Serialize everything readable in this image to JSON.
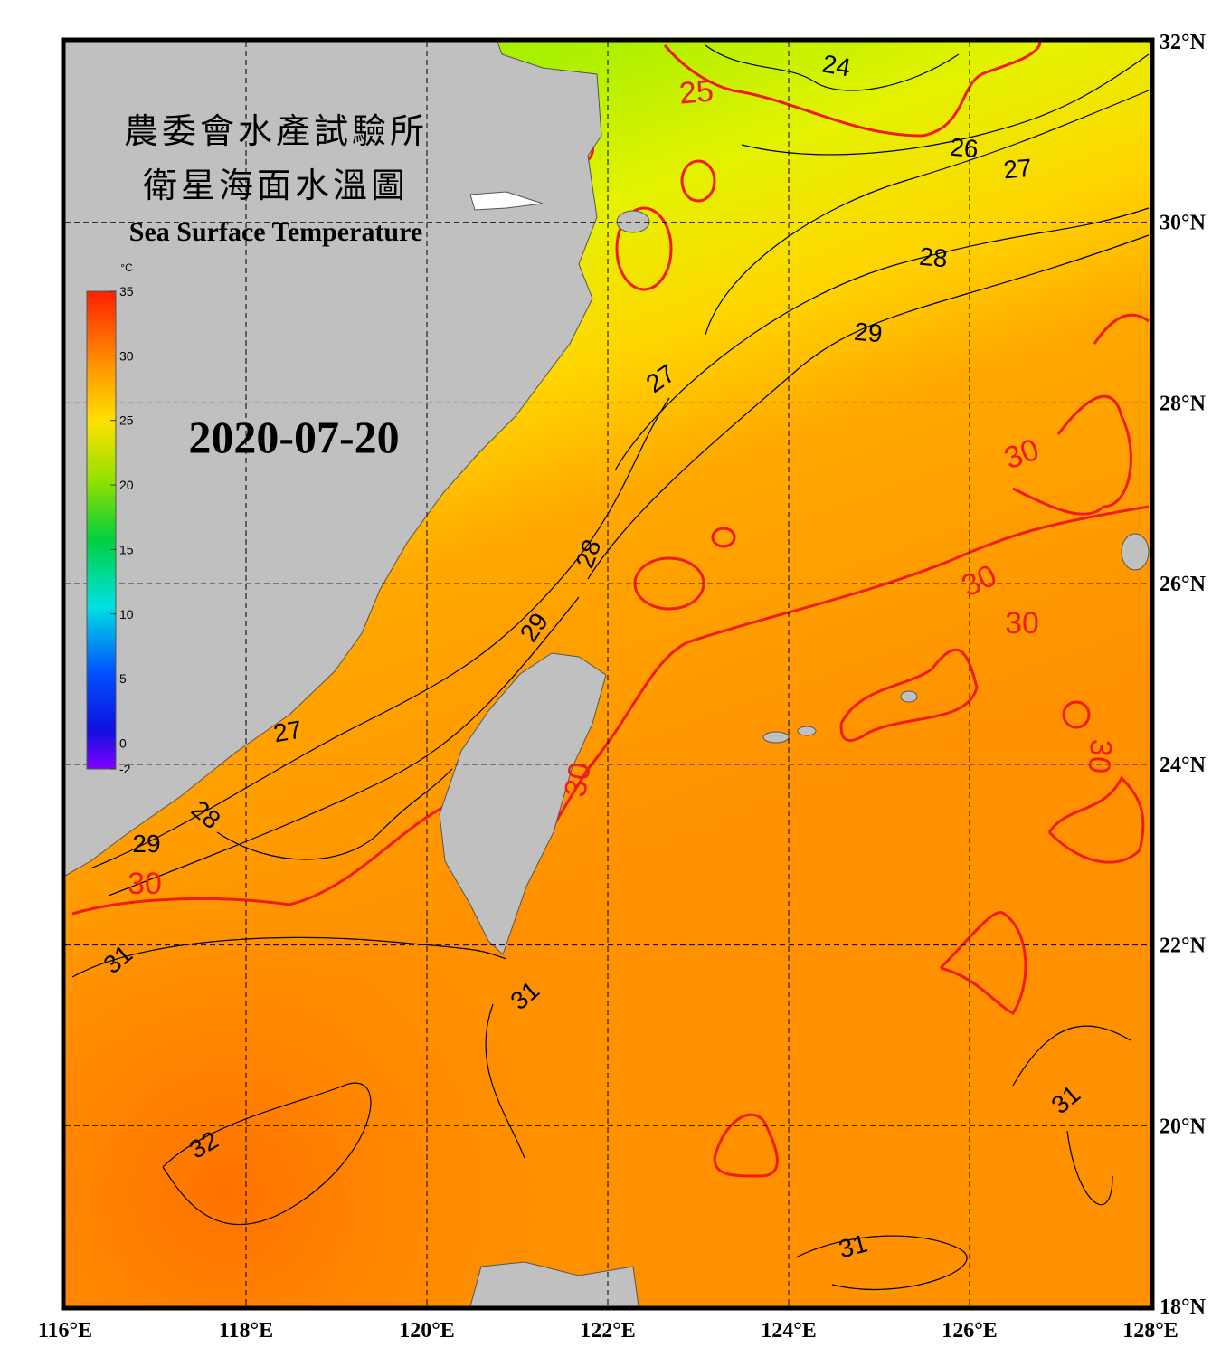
{
  "title_zh": [
    "農委會水產試驗所",
    "衛星海面水溫圖"
  ],
  "title_en": "Sea Surface Temperature",
  "date": "2020-07-20",
  "colorbar": {
    "unit": "°C",
    "ticks": [
      35,
      30,
      25,
      20,
      15,
      10,
      5,
      0,
      -2
    ],
    "lim": [
      -2,
      35
    ]
  },
  "lon_ticks": [
    {
      "value": 116,
      "label": "116°E"
    },
    {
      "value": 118,
      "label": "118°E"
    },
    {
      "value": 120,
      "label": "120°E"
    },
    {
      "value": 122,
      "label": "122°E"
    },
    {
      "value": 124,
      "label": "124°E"
    },
    {
      "value": 126,
      "label": "126°E"
    },
    {
      "value": 128,
      "label": "128°E"
    }
  ],
  "lat_ticks": [
    {
      "value": 32,
      "label": "32°N"
    },
    {
      "value": 30,
      "label": "30°N"
    },
    {
      "value": 28,
      "label": "28°N"
    },
    {
      "value": 26,
      "label": "26°N"
    },
    {
      "value": 24,
      "label": "24°N"
    },
    {
      "value": 22,
      "label": "22°N"
    },
    {
      "value": 20,
      "label": "20°N"
    },
    {
      "value": 18,
      "label": "18°N"
    }
  ],
  "contour_labels": [
    24,
    25,
    26,
    27,
    28,
    29,
    27,
    28,
    29,
    27,
    28,
    29,
    30,
    30,
    30,
    30,
    30,
    30,
    31,
    31,
    32,
    31,
    31
  ]
}
